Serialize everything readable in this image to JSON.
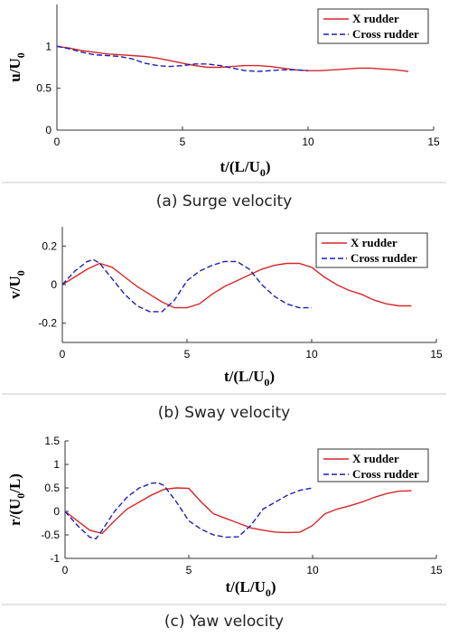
{
  "chart_data": [
    {
      "type": "line",
      "caption": "(a) Surge velocity",
      "xlabel": "t/(L/U",
      "xlabel_sub": "0",
      "xlabel_tail": ")",
      "ylabel": "u/U",
      "ylabel_sub": "0",
      "ylabel_tail": "",
      "xlim": [
        0,
        15
      ],
      "ylim": [
        0,
        1.5
      ],
      "xticks": [
        0,
        5,
        10,
        15
      ],
      "yticks": [
        0,
        0.5,
        1
      ],
      "ytick_labels": [
        "0",
        "0.5",
        "1"
      ],
      "legend_position": "top-right",
      "series": [
        {
          "name": "X rudder",
          "color": "#d62728",
          "style": "solid",
          "x": [
            0,
            0.5,
            1,
            1.5,
            2,
            2.5,
            3,
            3.5,
            4,
            4.5,
            5,
            5.5,
            6,
            6.5,
            7,
            7.5,
            8,
            8.5,
            9,
            9.5,
            10,
            10.5,
            11,
            11.5,
            12,
            12.5,
            13,
            13.5,
            14
          ],
          "y": [
            1.0,
            0.98,
            0.95,
            0.93,
            0.91,
            0.9,
            0.89,
            0.88,
            0.86,
            0.83,
            0.8,
            0.77,
            0.75,
            0.75,
            0.76,
            0.77,
            0.77,
            0.76,
            0.74,
            0.72,
            0.71,
            0.71,
            0.72,
            0.73,
            0.74,
            0.74,
            0.73,
            0.72,
            0.7
          ]
        },
        {
          "name": "Cross rudder",
          "color": "#1f1fb4",
          "style": "dashed",
          "x": [
            0,
            0.5,
            1,
            1.5,
            2,
            2.5,
            3,
            3.5,
            4,
            4.5,
            5,
            5.5,
            6,
            6.5,
            7,
            7.5,
            8,
            8.5,
            9,
            9.5,
            10
          ],
          "y": [
            1.0,
            0.97,
            0.93,
            0.9,
            0.89,
            0.88,
            0.85,
            0.8,
            0.77,
            0.76,
            0.77,
            0.79,
            0.79,
            0.77,
            0.74,
            0.71,
            0.7,
            0.71,
            0.72,
            0.72,
            0.71
          ]
        }
      ]
    },
    {
      "type": "line",
      "caption": "(b) Sway velocity",
      "xlabel": "t/(L/U",
      "xlabel_sub": "0",
      "xlabel_tail": ")",
      "ylabel": "v/U",
      "ylabel_sub": "0",
      "ylabel_tail": "",
      "xlim": [
        0,
        15
      ],
      "ylim": [
        -0.3,
        0.3
      ],
      "xticks": [
        0,
        5,
        10,
        15
      ],
      "yticks": [
        -0.2,
        0,
        0.2
      ],
      "ytick_labels": [
        "-0.2",
        "0",
        "0.2"
      ],
      "legend_position": "top-right",
      "series": [
        {
          "name": "X rudder",
          "color": "#d62728",
          "style": "solid",
          "x": [
            0,
            0.5,
            1,
            1.5,
            2,
            2.5,
            3,
            3.5,
            4,
            4.5,
            5,
            5.5,
            6,
            6.5,
            7,
            7.5,
            8,
            8.5,
            9,
            9.5,
            10,
            10.5,
            11,
            11.5,
            12,
            12.5,
            13,
            13.5,
            14
          ],
          "y": [
            0.0,
            0.04,
            0.08,
            0.11,
            0.09,
            0.04,
            -0.01,
            -0.05,
            -0.09,
            -0.12,
            -0.12,
            -0.1,
            -0.05,
            -0.01,
            0.02,
            0.05,
            0.08,
            0.1,
            0.11,
            0.11,
            0.09,
            0.04,
            0.0,
            -0.03,
            -0.05,
            -0.08,
            -0.1,
            -0.11,
            -0.11
          ]
        },
        {
          "name": "Cross rudder",
          "color": "#1f1fb4",
          "style": "dashed",
          "x": [
            0,
            0.5,
            1,
            1.25,
            1.5,
            2,
            2.5,
            3,
            3.5,
            4,
            4.5,
            5,
            5.5,
            6,
            6.5,
            7,
            7.5,
            8,
            8.5,
            9,
            9.5,
            10
          ],
          "y": [
            0.0,
            0.07,
            0.12,
            0.13,
            0.11,
            0.03,
            -0.05,
            -0.11,
            -0.14,
            -0.14,
            -0.08,
            0.02,
            0.07,
            0.1,
            0.12,
            0.12,
            0.08,
            0.0,
            -0.06,
            -0.1,
            -0.12,
            -0.12
          ]
        }
      ]
    },
    {
      "type": "line",
      "caption": "(c) Yaw velocity",
      "xlabel": "t/(L/U",
      "xlabel_sub": "0",
      "xlabel_tail": ")",
      "ylabel": "r/(U",
      "ylabel_sub": "0",
      "ylabel_tail": "/L)",
      "xlim": [
        0,
        15
      ],
      "ylim": [
        -1,
        1.5
      ],
      "xticks": [
        0,
        5,
        10,
        15
      ],
      "yticks": [
        -1,
        -0.5,
        0,
        0.5,
        1,
        1.5
      ],
      "ytick_labels": [
        "-1",
        "-0.5",
        "0",
        "0.5",
        "1",
        "1.5"
      ],
      "legend_position": "top-right",
      "series": [
        {
          "name": "X rudder",
          "color": "#d62728",
          "style": "solid",
          "x": [
            0,
            0.5,
            1,
            1.5,
            2,
            2.5,
            3,
            3.5,
            4,
            4.5,
            5,
            5.5,
            6,
            6.5,
            7,
            7.5,
            8,
            8.5,
            9,
            9.5,
            10,
            10.5,
            11,
            11.5,
            12,
            12.5,
            13,
            13.5,
            14
          ],
          "y": [
            0.0,
            -0.2,
            -0.4,
            -0.47,
            -0.2,
            0.05,
            0.2,
            0.35,
            0.47,
            0.5,
            0.49,
            0.2,
            -0.05,
            -0.15,
            -0.25,
            -0.35,
            -0.4,
            -0.44,
            -0.45,
            -0.44,
            -0.3,
            -0.05,
            0.05,
            0.12,
            0.2,
            0.3,
            0.38,
            0.43,
            0.44
          ]
        },
        {
          "name": "Cross rudder",
          "color": "#1f1fb4",
          "style": "dashed",
          "x": [
            0,
            0.5,
            1,
            1.25,
            1.5,
            2,
            2.5,
            3,
            3.5,
            3.75,
            4,
            4.5,
            5,
            5.5,
            6,
            6.5,
            7,
            7.5,
            8,
            8.5,
            9,
            9.5,
            10
          ],
          "y": [
            0.0,
            -0.3,
            -0.55,
            -0.58,
            -0.4,
            0.0,
            0.3,
            0.5,
            0.6,
            0.61,
            0.55,
            0.2,
            -0.2,
            -0.38,
            -0.5,
            -0.55,
            -0.54,
            -0.3,
            0.05,
            0.2,
            0.35,
            0.45,
            0.5
          ]
        }
      ]
    }
  ]
}
